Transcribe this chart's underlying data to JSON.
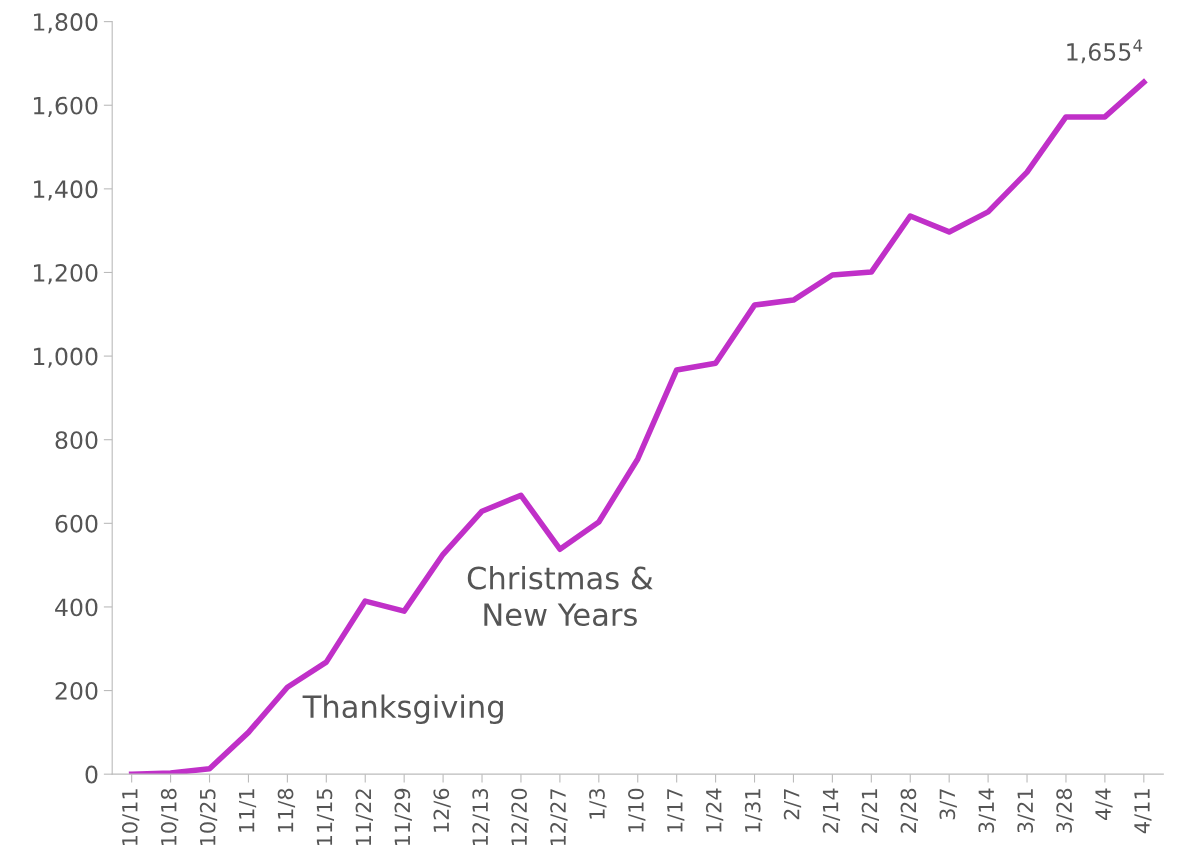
{
  "chart_data": {
    "type": "line",
    "categories": [
      "10/11",
      "10/18",
      "10/25",
      "11/1",
      "11/8",
      "11/15",
      "11/22",
      "11/29",
      "12/6",
      "12/13",
      "12/20",
      "12/27",
      "1/3",
      "1/10",
      "1/17",
      "1/24",
      "1/31",
      "2/7",
      "2/14",
      "2/21",
      "2/28",
      "3/7",
      "3/14",
      "3/21",
      "3/28",
      "4/4",
      "4/11"
    ],
    "series": [
      {
        "color": "#c030c8",
        "values": [
          0,
          3,
          13,
          100,
          208,
          268,
          414,
          390,
          526,
          629,
          667,
          538,
          603,
          754,
          967,
          983,
          1122,
          1134,
          1194,
          1201,
          1335,
          1297,
          1345,
          1440,
          1572,
          1572,
          1655
        ],
        "value_labels": [
          null,
          null,
          null,
          null,
          null,
          null,
          null,
          null,
          null,
          null,
          null,
          null,
          null,
          null,
          null,
          null,
          null,
          null,
          null,
          null,
          null,
          null,
          null,
          null,
          null,
          null,
          "1,655$^{4}$"
        ]
      }
    ],
    "ylim": [
      0,
      1800
    ],
    "yticks": [
      0,
      200,
      400,
      600,
      800,
      {
        "value": 1000,
        "label": "1,000"
      },
      {
        "value": 1200,
        "label": "1,200"
      },
      {
        "value": 1400,
        "label": "1,400"
      },
      {
        "value": 1600,
        "label": "1,600"
      },
      {
        "value": 1800,
        "label": "1,800"
      }
    ],
    "annotations": [
      {
        "text": "Thanksgiving",
        "x": "11/29",
        "y": 390
      },
      {
        "text": "Christmas &\nNew Years",
        "x": "12/27",
        "y": 538
      }
    ],
    "grid": false,
    "legend": false,
    "marker": "none",
    "line_style": "solid"
  }
}
